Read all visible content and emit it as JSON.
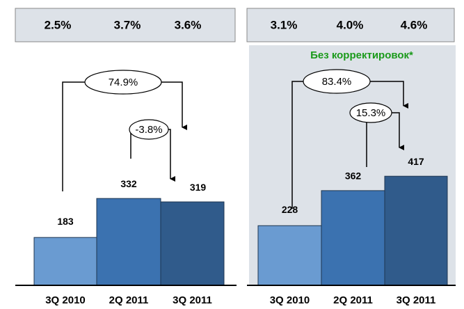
{
  "chart_data": [
    {
      "type": "bar",
      "header": [
        "2.5%",
        "3.7%",
        "3.6%"
      ],
      "categories": [
        "3Q 2010",
        "2Q 2011",
        "3Q 2011"
      ],
      "values": [
        183,
        332,
        319
      ],
      "colors": [
        "#6a9bd1",
        "#3b72b0",
        "#305b8b"
      ],
      "annotations": [
        "74.9%",
        "-3.8%"
      ],
      "ylim": [
        0,
        500
      ]
    },
    {
      "type": "bar",
      "subtitle": "Без корректировок*",
      "header": [
        "3.1%",
        "4.0%",
        "4.6%"
      ],
      "categories": [
        "3Q 2010",
        "2Q 2011",
        "3Q 2011"
      ],
      "values": [
        228,
        362,
        417
      ],
      "colors": [
        "#6a9bd1",
        "#3b72b0",
        "#305b8b"
      ],
      "annotations": [
        "83.4%",
        "15.3%"
      ],
      "ylim": [
        0,
        500
      ]
    }
  ]
}
